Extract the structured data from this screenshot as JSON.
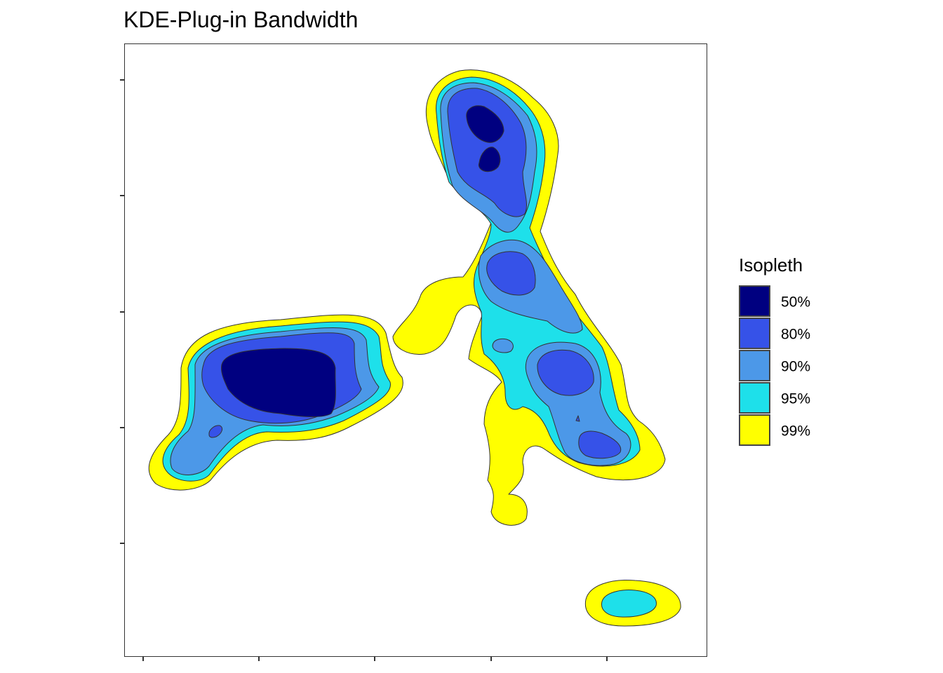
{
  "chart_data": {
    "type": "contour",
    "title": "KDE-Plug-in Bandwidth",
    "xlabel": "",
    "ylabel": "",
    "x_tick_labels": [
      "",
      "",
      "",
      "",
      ""
    ],
    "y_tick_labels": [
      "",
      "",
      "",
      "",
      ""
    ],
    "grid": false,
    "legend": {
      "title": "Isopleth",
      "position": "right",
      "entries": [
        {
          "label": "50%",
          "color": "#000080"
        },
        {
          "label": "80%",
          "color": "#3652e8"
        },
        {
          "label": "90%",
          "color": "#4c98e8"
        },
        {
          "label": "95%",
          "color": "#1ee0ea"
        },
        {
          "label": "99%",
          "color": "#ffff00"
        }
      ]
    },
    "isopleth_levels": [
      "99%",
      "95%",
      "90%",
      "80%",
      "50%"
    ]
  }
}
